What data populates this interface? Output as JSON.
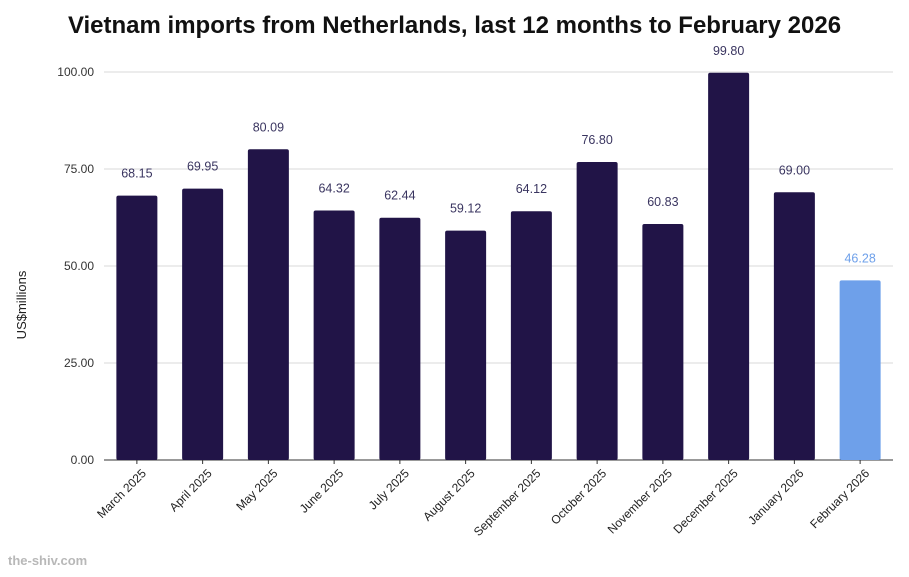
{
  "chart_data": {
    "type": "bar",
    "title": "Vietnam imports from Netherlands, last 12 months to February 2026",
    "xlabel": "",
    "ylabel": "US$millions",
    "ylim": [
      0,
      100
    ],
    "yticks": [
      "0.00",
      "25.00",
      "50.00",
      "75.00",
      "100.00"
    ],
    "categories": [
      "March 2025",
      "April 2025",
      "May 2025",
      "June 2025",
      "July 2025",
      "August 2025",
      "September 2025",
      "October 2025",
      "November 2025",
      "December 2025",
      "January 2026",
      "February 2026"
    ],
    "values": [
      68.15,
      69.95,
      80.09,
      64.32,
      62.44,
      59.12,
      64.12,
      76.8,
      60.83,
      99.8,
      69.0,
      46.28
    ],
    "value_labels": [
      "68.15",
      "69.95",
      "80.09",
      "64.32",
      "62.44",
      "59.12",
      "64.12",
      "76.80",
      "60.83",
      "99.80",
      "69.00",
      "46.28"
    ],
    "bar_colors": [
      "#211447",
      "#211447",
      "#211447",
      "#211447",
      "#211447",
      "#211447",
      "#211447",
      "#211447",
      "#211447",
      "#211447",
      "#211447",
      "#6ea0ea"
    ],
    "label_colors": [
      "#3a3560",
      "#3a3560",
      "#3a3560",
      "#3a3560",
      "#3a3560",
      "#3a3560",
      "#3a3560",
      "#3a3560",
      "#3a3560",
      "#3a3560",
      "#3a3560",
      "#6ea0ea"
    ],
    "grid": true
  },
  "watermark": "the-shiv.com"
}
